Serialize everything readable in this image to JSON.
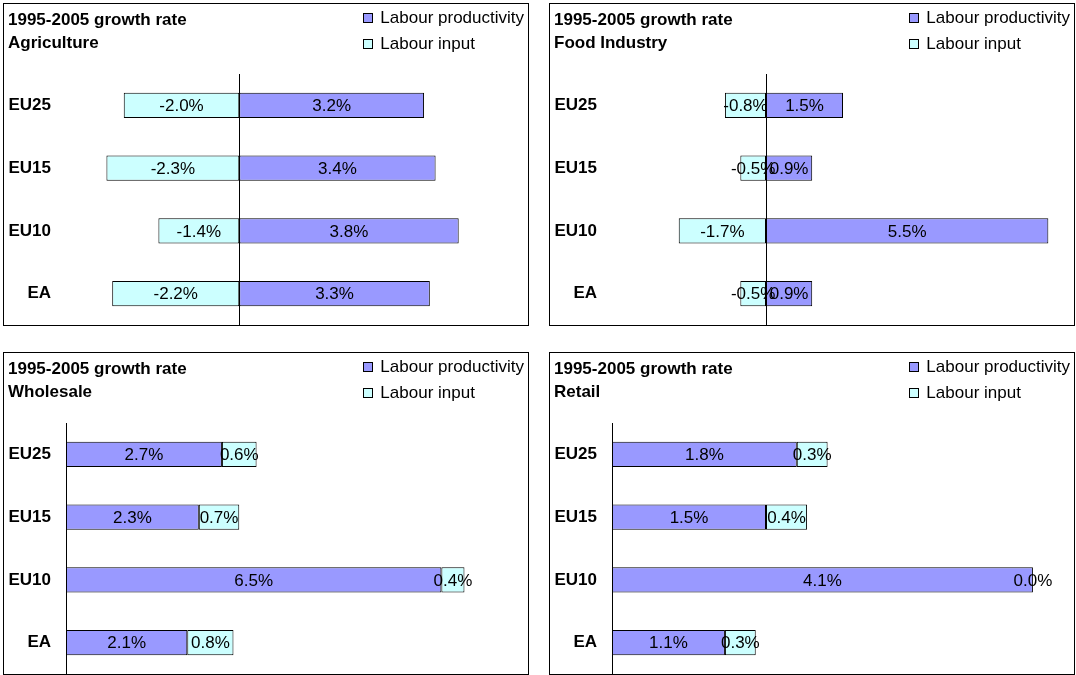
{
  "chart_data": [
    {
      "type": "bar",
      "orientation": "horizontal",
      "stacked": true,
      "title": "1995-2005 growth rate",
      "subtitle": "Agriculture",
      "categories": [
        "EU25",
        "EU15",
        "EU10",
        "EA"
      ],
      "series": [
        {
          "name": "Labour productivity",
          "color": "#9999ff",
          "values": [
            3.2,
            3.4,
            3.8,
            3.3
          ],
          "value_labels": [
            "3.2%",
            "3.4%",
            "3.8%",
            "3.3%"
          ]
        },
        {
          "name": "Labour input",
          "color": "#ccffff",
          "values": [
            -2.0,
            -2.3,
            -1.4,
            -2.2
          ],
          "value_labels": [
            "-2.0%",
            "-2.3%",
            "-1.4%",
            "-2.2%"
          ]
        }
      ],
      "legend": "top right",
      "tick_labels": "y"
    },
    {
      "type": "bar",
      "orientation": "horizontal",
      "stacked": true,
      "title": "1995-2005 growth rate",
      "subtitle": "Food Industry",
      "categories": [
        "EU25",
        "EU15",
        "EU10",
        "EA"
      ],
      "series": [
        {
          "name": "Labour productivity",
          "color": "#9999ff",
          "values": [
            1.5,
            0.9,
            5.5,
            0.9
          ],
          "value_labels": [
            "1.5%",
            "0.9%",
            "5.5%",
            "0.9%"
          ]
        },
        {
          "name": "Labour input",
          "color": "#ccffff",
          "values": [
            -0.8,
            -0.5,
            -1.7,
            -0.5
          ],
          "value_labels": [
            "-0.8%",
            "-0.5%",
            "-1.7%",
            "-0.5%"
          ]
        }
      ],
      "legend": "top right",
      "tick_labels": "y"
    },
    {
      "type": "bar",
      "orientation": "horizontal",
      "stacked": true,
      "title": "1995-2005 growth rate",
      "subtitle": "Wholesale",
      "categories": [
        "EU25",
        "EU15",
        "EU10",
        "EA"
      ],
      "series": [
        {
          "name": "Labour productivity",
          "color": "#9999ff",
          "values": [
            2.7,
            2.3,
            6.5,
            2.1
          ],
          "value_labels": [
            "2.7%",
            "2.3%",
            "6.5%",
            "2.1%"
          ]
        },
        {
          "name": "Labour input",
          "color": "#ccffff",
          "values": [
            0.6,
            0.7,
            0.4,
            0.8
          ],
          "value_labels": [
            "0.6%",
            "0.7%",
            "0.4%",
            "0.8%"
          ]
        }
      ],
      "legend": "top right",
      "tick_labels": "y"
    },
    {
      "type": "bar",
      "orientation": "horizontal",
      "stacked": true,
      "title": "1995-2005 growth rate",
      "subtitle": "Retail",
      "categories": [
        "EU25",
        "EU15",
        "EU10",
        "EA"
      ],
      "series": [
        {
          "name": "Labour productivity",
          "color": "#9999ff",
          "values": [
            1.8,
            1.5,
            4.1,
            1.1
          ],
          "value_labels": [
            "1.8%",
            "1.5%",
            "4.1%",
            "1.1%"
          ]
        },
        {
          "name": "Labour input",
          "color": "#ccffff",
          "values": [
            0.3,
            0.4,
            0.0,
            0.3
          ],
          "value_labels": [
            "0.3%",
            "0.4%",
            "0.0%",
            "0.3%"
          ]
        }
      ],
      "legend": "top right",
      "tick_labels": "y"
    }
  ]
}
